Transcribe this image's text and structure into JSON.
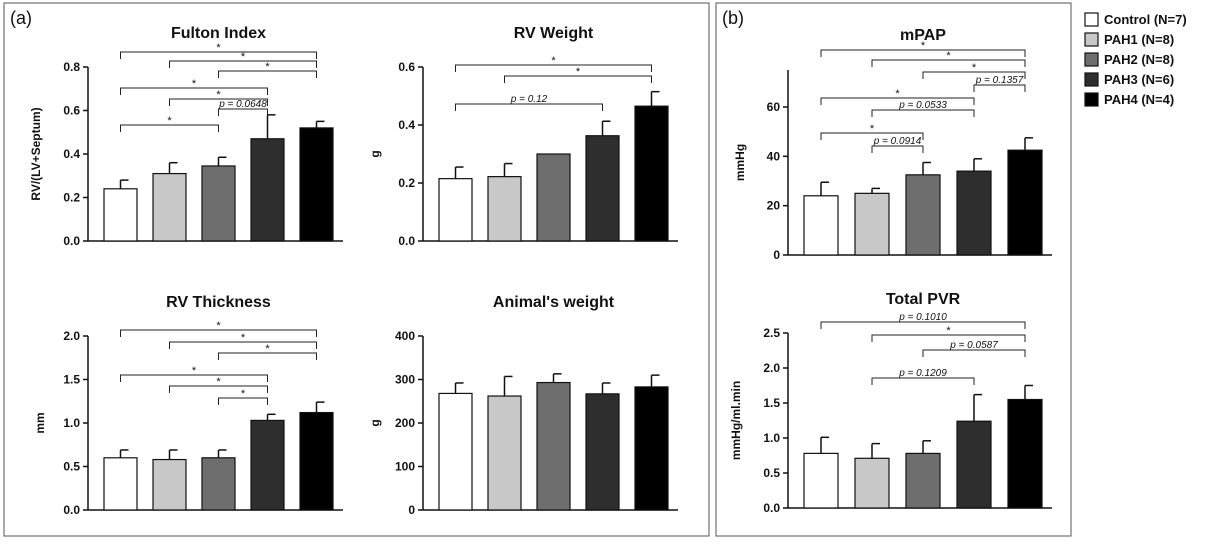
{
  "panels": [
    {
      "label": "(a)"
    },
    {
      "label": "(b)"
    }
  ],
  "legend": {
    "entries": [
      {
        "label": "Control (N=7)",
        "color": "#ffffff"
      },
      {
        "label": "PAH1 (N=8)",
        "color": "#c8c8c8"
      },
      {
        "label": "PAH2 (N=8)",
        "color": "#6e6e6e"
      },
      {
        "label": "PAH3 (N=6)",
        "color": "#2e2e2e"
      },
      {
        "label": "PAH4 (N=4)",
        "color": "#000000"
      }
    ]
  },
  "chart_data": [
    {
      "type": "bar",
      "title": "Fulton Index",
      "ylabel": "RV/(LV+Septum)",
      "ylim": [
        0,
        0.8
      ],
      "yticks": [
        "0.0",
        "0.2",
        "0.4",
        "0.6",
        "0.8"
      ],
      "categories": [
        "Control",
        "PAH1",
        "PAH2",
        "PAH3",
        "PAH4"
      ],
      "values": [
        0.24,
        0.31,
        0.345,
        0.47,
        0.52
      ],
      "errors": [
        0.04,
        0.05,
        0.04,
        0.11,
        0.03
      ],
      "significance": [
        {
          "from": 0,
          "to": 4,
          "label": "*"
        },
        {
          "from": 1,
          "to": 4,
          "label": "*"
        },
        {
          "from": 2,
          "to": 4,
          "label": "*"
        },
        {
          "from": 0,
          "to": 3,
          "label": "*"
        },
        {
          "from": 1,
          "to": 3,
          "label": "*"
        },
        {
          "from": 2,
          "to": 3,
          "label": "p = 0.0648"
        },
        {
          "from": 0,
          "to": 2,
          "label": "*"
        }
      ]
    },
    {
      "type": "bar",
      "title": "RV Weight",
      "ylabel": "g",
      "ylim": [
        0,
        0.6
      ],
      "yticks": [
        "0.0",
        "0.2",
        "0.4",
        "0.6"
      ],
      "categories": [
        "Control",
        "PAH1",
        "PAH2",
        "PAH3",
        "PAH4"
      ],
      "values": [
        0.215,
        0.222,
        0.3,
        0.363,
        0.465
      ],
      "errors": [
        0.04,
        0.045,
        0.0,
        0.05,
        0.05
      ],
      "significance": [
        {
          "from": 0,
          "to": 4,
          "label": "*"
        },
        {
          "from": 1,
          "to": 4,
          "label": "*"
        },
        {
          "from": 0,
          "to": 3,
          "label": "p = 0.12"
        }
      ]
    },
    {
      "type": "bar",
      "title": "RV Thickness",
      "ylabel": "mm",
      "ylim": [
        0,
        2.0
      ],
      "yticks": [
        "0.0",
        "0.5",
        "1.0",
        "1.5",
        "2.0"
      ],
      "categories": [
        "Control",
        "PAH1",
        "PAH2",
        "PAH3",
        "PAH4"
      ],
      "values": [
        0.6,
        0.58,
        0.6,
        1.03,
        1.12
      ],
      "errors": [
        0.09,
        0.11,
        0.09,
        0.07,
        0.12
      ],
      "significance": [
        {
          "from": 0,
          "to": 4,
          "label": "*"
        },
        {
          "from": 1,
          "to": 4,
          "label": "*"
        },
        {
          "from": 2,
          "to": 4,
          "label": "*"
        },
        {
          "from": 0,
          "to": 3,
          "label": "*"
        },
        {
          "from": 1,
          "to": 3,
          "label": "*"
        },
        {
          "from": 2,
          "to": 3,
          "label": "*"
        }
      ]
    },
    {
      "type": "bar",
      "title": "Animal's weight",
      "ylabel": "g",
      "ylim": [
        0,
        400
      ],
      "yticks": [
        "0",
        "100",
        "200",
        "300",
        "400"
      ],
      "categories": [
        "Control",
        "PAH1",
        "PAH2",
        "PAH3",
        "PAH4"
      ],
      "values": [
        268,
        262,
        293,
        267,
        283
      ],
      "errors": [
        24,
        45,
        20,
        25,
        27
      ],
      "significance": []
    },
    {
      "type": "bar",
      "title": "mPAP",
      "ylabel": "mmHg",
      "ylim": [
        0,
        75
      ],
      "yticks": [
        "0",
        "20",
        "40",
        "60"
      ],
      "categories": [
        "Control",
        "PAH1",
        "PAH2",
        "PAH3",
        "PAH4"
      ],
      "values": [
        24,
        25,
        32.5,
        34,
        42.5
      ],
      "errors": [
        5.5,
        2,
        5,
        5,
        5
      ],
      "significance": [
        {
          "from": 0,
          "to": 4,
          "label": "*"
        },
        {
          "from": 1,
          "to": 4,
          "label": "*"
        },
        {
          "from": 2,
          "to": 4,
          "label": "*"
        },
        {
          "from": 3,
          "to": 4,
          "label": "p = 0.1357"
        },
        {
          "from": 0,
          "to": 3,
          "label": "*"
        },
        {
          "from": 1,
          "to": 3,
          "label": "p = 0.0533"
        },
        {
          "from": 0,
          "to": 2,
          "label": "*"
        },
        {
          "from": 1,
          "to": 2,
          "label": "p = 0.0914"
        }
      ]
    },
    {
      "type": "bar",
      "title": "Total PVR",
      "ylabel": "mmHg/ml.min",
      "ylim": [
        0,
        2.5
      ],
      "yticks": [
        "0.0",
        "0.5",
        "1.0",
        "1.5",
        "2.0",
        "2.5"
      ],
      "categories": [
        "Control",
        "PAH1",
        "PAH2",
        "PAH3",
        "PAH4"
      ],
      "values": [
        0.78,
        0.71,
        0.78,
        1.24,
        1.55
      ],
      "errors": [
        0.23,
        0.21,
        0.18,
        0.38,
        0.2
      ],
      "significance": [
        {
          "from": 0,
          "to": 4,
          "label": "p = 0.1010"
        },
        {
          "from": 1,
          "to": 4,
          "label": "*"
        },
        {
          "from": 2,
          "to": 4,
          "label": "p = 0.0587"
        },
        {
          "from": 1,
          "to": 3,
          "label": "p = 0.1209"
        }
      ]
    }
  ]
}
